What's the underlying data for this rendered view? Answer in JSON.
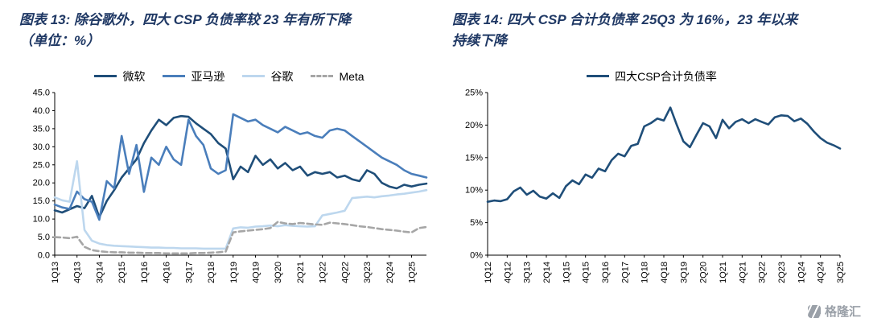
{
  "figures": {
    "fig13": {
      "title_line1": "图表 13: 除谷歌外，四大 CSP 负债率较 23 年有所下降",
      "title_line2": "（单位：%）"
    },
    "fig14": {
      "title_line1": "图表 14: 四大 CSP 合计负债率 25Q3 为 16%，23 年以来",
      "title_line2": "持续下降"
    }
  },
  "watermark": {
    "brand": "格隆汇"
  },
  "colors": {
    "title": "#1F3864",
    "microsoft": "#1F4E79",
    "amazon": "#4A7EBB",
    "google": "#BDD7EE",
    "meta": "#A6A6A6",
    "combined": "#1F4E79",
    "axis": "#000000"
  },
  "chart_data": [
    {
      "type": "line",
      "title": "图表 13: 除谷歌外，四大 CSP 负债率较 23 年有所下降（单位：%）",
      "xlabel": "",
      "ylabel": "",
      "grid": false,
      "legend_position": "top",
      "ylim": [
        0,
        45
      ],
      "y_tick_values": [
        0,
        5,
        10,
        15,
        20,
        25,
        30,
        35,
        40,
        45
      ],
      "y_tick_labels": [
        "0.0",
        "5.0",
        "10.0",
        "15.0",
        "20.0",
        "25.0",
        "30.0",
        "35.0",
        "40.0",
        "45.0"
      ],
      "tick_interval": 3,
      "x": [
        "1Q13",
        "2Q13",
        "3Q13",
        "4Q13",
        "1Q14",
        "2Q14",
        "3Q14",
        "4Q14",
        "1Q15",
        "2Q15",
        "3Q15",
        "4Q15",
        "1Q16",
        "2Q16",
        "3Q16",
        "4Q16",
        "1Q17",
        "2Q17",
        "3Q17",
        "4Q17",
        "1Q18",
        "2Q18",
        "3Q18",
        "4Q18",
        "1Q19",
        "2Q19",
        "3Q19",
        "4Q19",
        "1Q20",
        "2Q20",
        "3Q20",
        "4Q20",
        "1Q21",
        "2Q21",
        "3Q21",
        "4Q21",
        "1Q22",
        "2Q22",
        "3Q22",
        "4Q22",
        "1Q23",
        "2Q23",
        "3Q23",
        "4Q23",
        "1Q24",
        "2Q24",
        "3Q24",
        "4Q24",
        "1Q25",
        "2Q25",
        "3Q25"
      ],
      "series": [
        {
          "name": "微软",
          "color": "#1F4E79",
          "dash": false,
          "values": [
            12.4,
            11.8,
            12.7,
            13.6,
            13.0,
            16.4,
            10.5,
            15.0,
            18.0,
            21.5,
            24.0,
            26.5,
            31.0,
            34.5,
            37.5,
            36.0,
            38.0,
            38.5,
            38.3,
            36.5,
            35.0,
            33.5,
            31.0,
            29.5,
            21.0,
            24.5,
            23.0,
            27.5,
            25.0,
            26.5,
            24.0,
            25.5,
            23.5,
            24.5,
            22.0,
            23.0,
            22.5,
            23.0,
            21.5,
            22.0,
            21.0,
            20.5,
            23.5,
            22.5,
            20.0,
            19.0,
            18.5,
            19.5,
            19.0,
            19.5,
            19.8
          ]
        },
        {
          "name": "亚马逊",
          "color": "#4A7EBB",
          "dash": false,
          "values": [
            14.0,
            13.2,
            12.8,
            17.6,
            15.5,
            14.8,
            9.8,
            20.5,
            18.5,
            33.0,
            22.5,
            30.5,
            17.5,
            27.0,
            25.0,
            30.0,
            26.5,
            25.0,
            37.5,
            33.0,
            30.5,
            24.0,
            22.5,
            23.5,
            39.0,
            38.0,
            37.0,
            37.5,
            36.0,
            35.0,
            34.0,
            35.5,
            34.5,
            33.5,
            34.0,
            33.0,
            32.5,
            34.5,
            35.0,
            34.5,
            33.0,
            31.5,
            30.0,
            28.5,
            27.0,
            26.0,
            25.0,
            23.5,
            22.5,
            22.0,
            21.5
          ]
        },
        {
          "name": "谷歌",
          "color": "#BDD7EE",
          "dash": false,
          "values": [
            16.0,
            15.2,
            14.8,
            26.0,
            7.0,
            4.0,
            3.2,
            2.8,
            2.6,
            2.5,
            2.4,
            2.3,
            2.2,
            2.1,
            2.1,
            2.0,
            2.0,
            1.9,
            1.9,
            1.9,
            1.8,
            1.8,
            1.8,
            1.8,
            7.4,
            7.7,
            7.6,
            7.9,
            8.0,
            8.2,
            8.0,
            8.3,
            8.1,
            8.0,
            7.9,
            8.0,
            11.0,
            11.4,
            11.8,
            12.3,
            15.8,
            16.0,
            16.2,
            16.0,
            16.3,
            16.5,
            16.8,
            17.0,
            17.3,
            17.6,
            18.0
          ]
        },
        {
          "name": "Meta",
          "color": "#A6A6A6",
          "dash": true,
          "values": [
            5.0,
            4.9,
            4.7,
            5.1,
            2.3,
            1.4,
            1.1,
            0.9,
            0.8,
            0.8,
            0.7,
            0.7,
            0.6,
            0.6,
            0.6,
            0.5,
            0.5,
            0.5,
            0.5,
            0.6,
            0.6,
            0.7,
            0.8,
            1.0,
            6.3,
            6.6,
            6.8,
            7.0,
            7.2,
            7.5,
            9.2,
            8.8,
            8.6,
            8.9,
            8.7,
            8.5,
            8.4,
            9.0,
            8.8,
            8.6,
            8.3,
            8.0,
            7.8,
            7.5,
            7.2,
            7.0,
            6.8,
            6.5,
            6.3,
            7.5,
            7.8
          ]
        }
      ]
    },
    {
      "type": "line",
      "title": "图表 14: 四大 CSP 合计负债率 25Q3 为 16%，23 年以来持续下降",
      "xlabel": "",
      "ylabel": "",
      "grid": false,
      "legend_position": "top",
      "ylim": [
        0,
        25
      ],
      "y_tick_values": [
        0,
        5,
        10,
        15,
        20,
        25
      ],
      "y_tick_labels": [
        "0%",
        "5%",
        "10%",
        "15%",
        "20%",
        "25%"
      ],
      "tick_interval": 3,
      "x": [
        "1Q12",
        "2Q12",
        "3Q12",
        "4Q12",
        "1Q13",
        "2Q13",
        "3Q13",
        "4Q13",
        "1Q14",
        "2Q14",
        "3Q14",
        "4Q14",
        "1Q15",
        "2Q15",
        "3Q15",
        "4Q15",
        "1Q16",
        "2Q16",
        "3Q16",
        "4Q16",
        "1Q17",
        "2Q17",
        "3Q17",
        "4Q17",
        "1Q18",
        "2Q18",
        "3Q18",
        "4Q18",
        "1Q19",
        "2Q19",
        "3Q19",
        "4Q19",
        "1Q20",
        "2Q20",
        "3Q20",
        "4Q20",
        "1Q21",
        "2Q21",
        "3Q21",
        "4Q21",
        "1Q22",
        "2Q22",
        "3Q22",
        "4Q22",
        "1Q23",
        "2Q23",
        "3Q23",
        "4Q23",
        "1Q24",
        "2Q24",
        "3Q24",
        "4Q24",
        "1Q25",
        "2Q25",
        "3Q25"
      ],
      "series": [
        {
          "name": "四大CSP合计负债率",
          "color": "#1F4E79",
          "dash": false,
          "values": [
            8.2,
            8.4,
            8.3,
            8.6,
            9.8,
            10.4,
            9.3,
            9.9,
            9.0,
            8.7,
            9.5,
            8.8,
            10.6,
            11.5,
            10.9,
            12.4,
            11.9,
            13.3,
            12.9,
            14.6,
            15.6,
            15.2,
            16.8,
            17.1,
            19.8,
            20.3,
            21.0,
            20.7,
            22.7,
            20.0,
            17.5,
            16.6,
            18.5,
            20.3,
            19.8,
            18.0,
            20.8,
            19.5,
            20.5,
            20.9,
            20.3,
            20.9,
            20.5,
            20.1,
            21.2,
            21.5,
            21.4,
            20.6,
            21.0,
            20.2,
            19.0,
            18.0,
            17.3,
            16.9,
            16.4
          ]
        }
      ]
    }
  ]
}
